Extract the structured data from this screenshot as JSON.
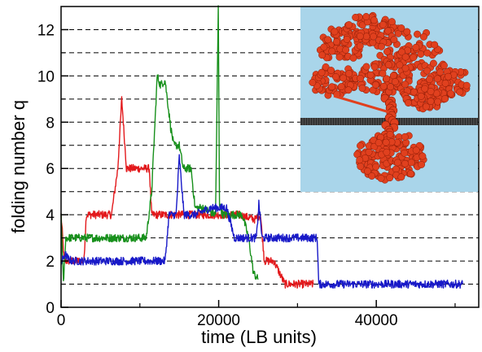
{
  "chart_data": {
    "type": "line",
    "xlabel": "time (LB units)",
    "ylabel": "folding number q",
    "xlim": [
      0,
      53000
    ],
    "ylim": [
      0,
      13
    ],
    "x_ticks": [
      0,
      20000,
      40000
    ],
    "y_ticks": [
      0,
      2,
      4,
      6,
      8,
      10,
      12
    ],
    "grid": {
      "horizontal_dashed_at": [
        1,
        2,
        3,
        4,
        5,
        6,
        7,
        8,
        9,
        10,
        11,
        12
      ],
      "vertical": false
    },
    "inset": {
      "description": "polymer chain folding through a membrane",
      "colors": {
        "background": "#a9d5ea",
        "polymer": "#e0401e",
        "membrane": "#2a2a2a"
      }
    },
    "series": [
      {
        "color": "#e3181b",
        "x": [
          0,
          400,
          700,
          2900,
          3200,
          6400,
          7200,
          7700,
          8300,
          8700,
          11200,
          11500,
          15000,
          17000,
          20000,
          22500,
          24600,
          25300,
          25800,
          27000,
          28400,
          29500,
          32000
        ],
        "y": [
          4,
          2,
          2,
          2,
          4,
          4,
          6,
          9,
          6,
          6,
          6,
          4,
          4,
          4,
          4,
          4,
          3.8,
          4,
          2,
          2,
          1,
          1,
          1
        ]
      },
      {
        "color": "#17901b",
        "x": [
          0,
          300,
          600,
          1000,
          5000,
          10800,
          11500,
          12200,
          12600,
          13200,
          13900,
          14300,
          15000,
          15500,
          16500,
          17000,
          18000,
          19600,
          19800,
          19950,
          20100,
          20500,
          23000,
          23800,
          24400,
          25000
        ],
        "y": [
          4,
          1,
          3,
          3,
          3,
          3,
          5,
          10,
          9.6,
          9.8,
          7.8,
          7,
          7,
          6,
          6,
          4.3,
          4.3,
          4,
          9,
          13,
          4.5,
          4,
          4,
          3,
          1.5,
          1.2
        ]
      },
      {
        "color": "#1819c8",
        "x": [
          0,
          500,
          900,
          1400,
          5000,
          12000,
          13200,
          13700,
          14600,
          15000,
          15600,
          17000,
          19000,
          21000,
          22000,
          24800,
          25100,
          25500,
          30000,
          32500,
          32700,
          40000,
          45000,
          51000
        ],
        "y": [
          1.9,
          2.3,
          2.1,
          2,
          2,
          2,
          2,
          4,
          4,
          6.5,
          4,
          4,
          4.3,
          4.3,
          3,
          3,
          4.5,
          3,
          3,
          3,
          1,
          1,
          1,
          1
        ]
      }
    ]
  }
}
